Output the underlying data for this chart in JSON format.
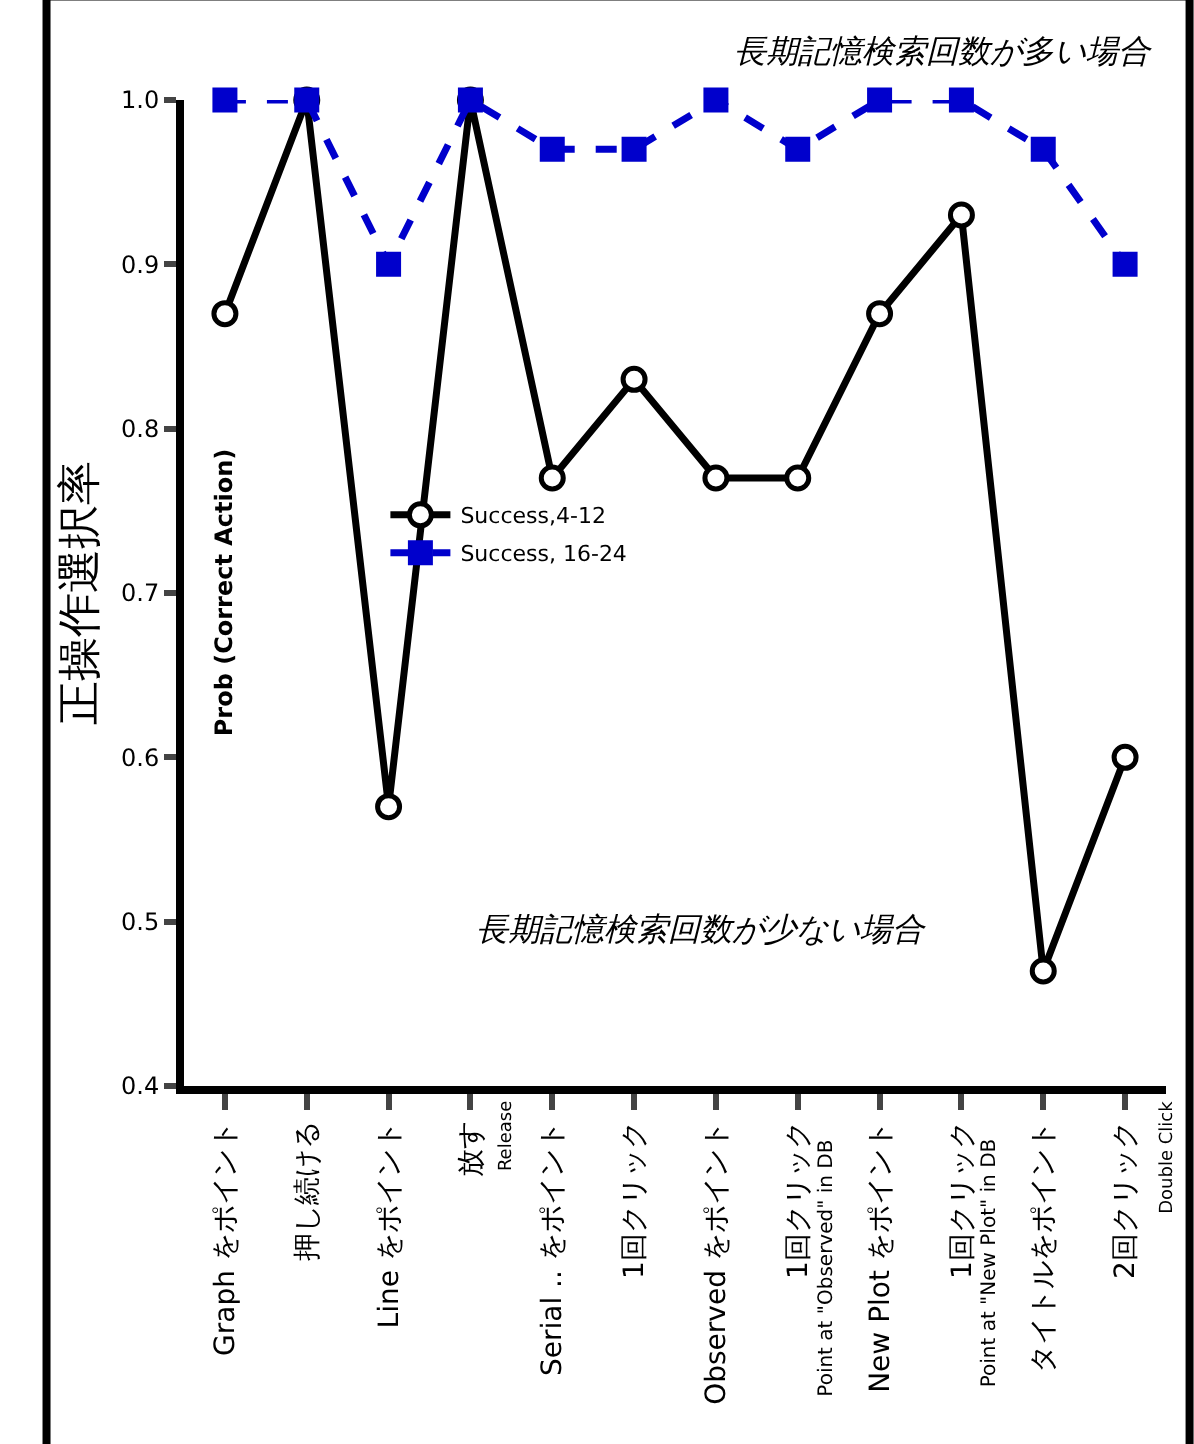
{
  "chart_data": {
    "type": "line",
    "ylabel": "正操作選択率",
    "categories": [
      "Graph をポイント",
      "押し続ける",
      "Line をポイント",
      "放す",
      "Serial .. をポイント",
      "1回クリック",
      "Observed をポイント",
      "1回クリック",
      "New Plot をポイント",
      "1回クリック",
      "タイトルをポイント",
      "2回クリック"
    ],
    "series": [
      {
        "name": "Success,4-12",
        "color": "#000000",
        "marker": "circle",
        "line_style": "solid",
        "values": [
          0.87,
          1.0,
          0.57,
          1.0,
          0.77,
          0.83,
          0.77,
          0.77,
          0.87,
          0.93,
          0.47,
          0.6
        ]
      },
      {
        "name": "Success, 16-24",
        "color": "#0000cc",
        "marker": "square",
        "line_style": "dashed",
        "values": [
          1.0,
          1.0,
          0.9,
          1.0,
          0.97,
          0.97,
          1.0,
          0.97,
          1.0,
          1.0,
          0.97,
          0.9
        ]
      }
    ],
    "ylim": [
      0.4,
      1.0
    ],
    "yticks": [
      {
        "value": 0.4,
        "label": "0.4"
      },
      {
        "value": 0.5,
        "label": "0.5"
      },
      {
        "value": 0.6,
        "label": "0.6"
      },
      {
        "value": 0.7,
        "label": "0.7"
      },
      {
        "value": 0.8,
        "label": "0.8"
      },
      {
        "value": 0.9,
        "label": "0.9"
      },
      {
        "value": 1.0,
        "label": "1.0"
      }
    ],
    "legend": "center",
    "annotations": [
      "長期記憶検索回数が多い場合",
      "長期記憶検索回数が少ない場合",
      "Prob (Correct Action)",
      "Release",
      "Point at \"Observed\" in DB",
      "Point at \"New Plot\" in DB",
      "Double Click"
    ]
  }
}
